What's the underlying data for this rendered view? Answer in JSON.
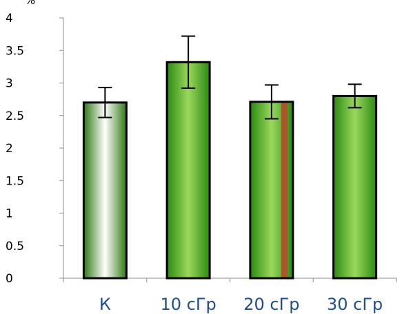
{
  "chart_data": {
    "type": "bar",
    "ylabel": "%",
    "ylim": [
      0,
      4
    ],
    "yticks": [
      "0",
      "0.5",
      "1",
      "1.5",
      "2",
      "2.5",
      "3",
      "3.5",
      "4"
    ],
    "categories": [
      "К",
      "10 сГр",
      "20 сГр",
      "30 сГр"
    ],
    "values": [
      2.7,
      3.32,
      2.71,
      2.8
    ],
    "errors": [
      0.23,
      0.4,
      0.26,
      0.18
    ],
    "grid": false,
    "colors": {
      "control_fill": "#ffffff",
      "bar_fill": "#4fb82a",
      "bar_highlight": "#9ad85c",
      "stripe": "#b0522a",
      "category_label": "#1f4e8c",
      "outline": "#000000"
    }
  }
}
